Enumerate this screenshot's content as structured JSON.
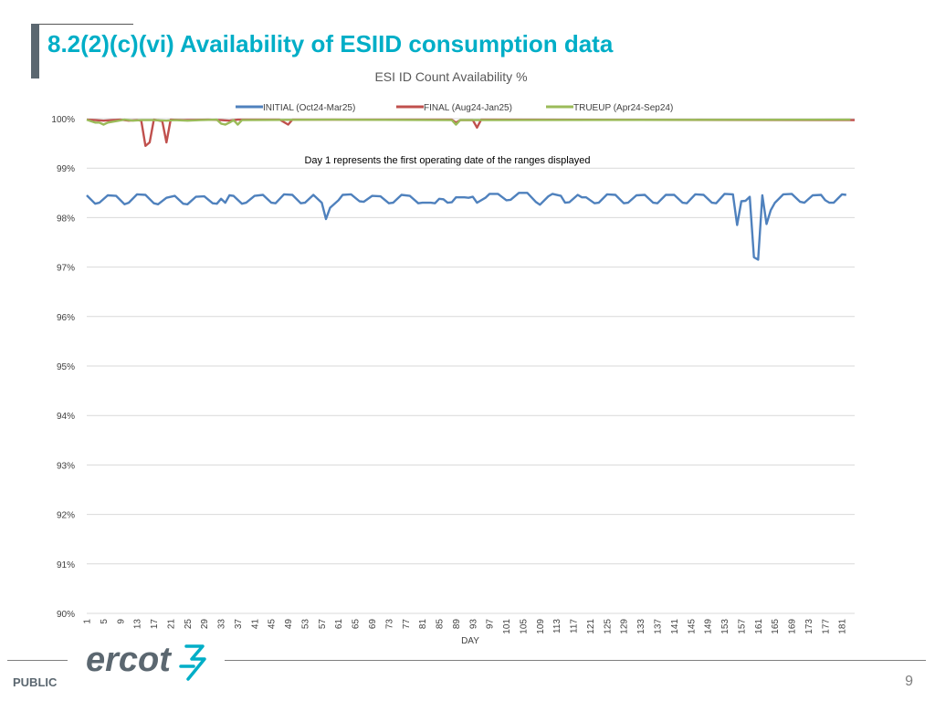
{
  "slide": {
    "title": "8.2(2)(c)(vi) Availability of ESIID consumption data",
    "footer_label": "PUBLIC",
    "page_number": "9",
    "logo_text": "ercot"
  },
  "colors": {
    "title": "#00aec7",
    "initial": "#4f81bd",
    "final": "#c0504d",
    "trueup": "#9bbb59",
    "grid": "#d9d9d9",
    "text": "#404040"
  },
  "chart_data": {
    "type": "line",
    "title": "ESI ID Count Availability %",
    "annotation": "Day 1 represents the first operating date of the ranges displayed",
    "xlabel": "DAY",
    "ylabel": "",
    "ylim": [
      90,
      100
    ],
    "xlim": [
      1,
      184
    ],
    "y_ticks": [
      "90%",
      "91%",
      "92%",
      "93%",
      "94%",
      "95%",
      "96%",
      "97%",
      "98%",
      "99%",
      "100%"
    ],
    "x_ticks": [
      "1",
      "5",
      "9",
      "13",
      "17",
      "21",
      "25",
      "29",
      "33",
      "37",
      "41",
      "45",
      "49",
      "53",
      "57",
      "61",
      "65",
      "69",
      "73",
      "77",
      "81",
      "85",
      "89",
      "93",
      "97",
      "101",
      "105",
      "109",
      "113",
      "117",
      "121",
      "125",
      "129",
      "133",
      "137",
      "141",
      "145",
      "149",
      "153",
      "157",
      "161",
      "165",
      "169",
      "173",
      "177",
      "181"
    ],
    "legend_position": "top",
    "grid": true,
    "series": [
      {
        "name": "INITIAL (Oct24-Mar25)",
        "color": "#4f81bd",
        "points": [
          [
            1,
            98.45
          ],
          [
            3,
            98.28
          ],
          [
            4,
            98.3
          ],
          [
            6,
            98.45
          ],
          [
            8,
            98.44
          ],
          [
            10,
            98.27
          ],
          [
            11,
            98.3
          ],
          [
            13,
            98.47
          ],
          [
            15,
            98.46
          ],
          [
            17,
            98.29
          ],
          [
            18,
            98.27
          ],
          [
            20,
            98.4
          ],
          [
            22,
            98.44
          ],
          [
            24,
            98.28
          ],
          [
            25,
            98.27
          ],
          [
            27,
            98.42
          ],
          [
            29,
            98.43
          ],
          [
            31,
            98.29
          ],
          [
            32,
            98.28
          ],
          [
            33,
            98.38
          ],
          [
            34,
            98.3
          ],
          [
            35,
            98.45
          ],
          [
            36,
            98.44
          ],
          [
            38,
            98.28
          ],
          [
            39,
            98.3
          ],
          [
            41,
            98.44
          ],
          [
            43,
            98.46
          ],
          [
            45,
            98.3
          ],
          [
            46,
            98.29
          ],
          [
            48,
            98.47
          ],
          [
            50,
            98.46
          ],
          [
            52,
            98.29
          ],
          [
            53,
            98.3
          ],
          [
            55,
            98.46
          ],
          [
            57,
            98.3
          ],
          [
            58,
            97.97
          ],
          [
            59,
            98.2
          ],
          [
            61,
            98.35
          ],
          [
            62,
            98.46
          ],
          [
            64,
            98.47
          ],
          [
            66,
            98.33
          ],
          [
            67,
            98.32
          ],
          [
            69,
            98.44
          ],
          [
            71,
            98.43
          ],
          [
            73,
            98.29
          ],
          [
            74,
            98.3
          ],
          [
            76,
            98.46
          ],
          [
            78,
            98.44
          ],
          [
            80,
            98.29
          ],
          [
            81,
            98.3
          ],
          [
            83,
            98.3
          ],
          [
            84,
            98.29
          ],
          [
            85,
            98.38
          ],
          [
            86,
            98.37
          ],
          [
            87,
            98.3
          ],
          [
            88,
            98.31
          ],
          [
            89,
            98.41
          ],
          [
            91,
            98.41
          ],
          [
            92,
            98.4
          ],
          [
            93,
            98.42
          ],
          [
            94,
            98.3
          ],
          [
            96,
            98.4
          ],
          [
            97,
            98.48
          ],
          [
            99,
            98.48
          ],
          [
            101,
            98.35
          ],
          [
            102,
            98.36
          ],
          [
            104,
            98.5
          ],
          [
            106,
            98.5
          ],
          [
            108,
            98.32
          ],
          [
            109,
            98.26
          ],
          [
            111,
            98.43
          ],
          [
            112,
            98.48
          ],
          [
            114,
            98.44
          ],
          [
            115,
            98.3
          ],
          [
            116,
            98.31
          ],
          [
            118,
            98.46
          ],
          [
            119,
            98.41
          ],
          [
            120,
            98.41
          ],
          [
            122,
            98.29
          ],
          [
            123,
            98.3
          ],
          [
            125,
            98.47
          ],
          [
            127,
            98.46
          ],
          [
            129,
            98.29
          ],
          [
            130,
            98.3
          ],
          [
            132,
            98.45
          ],
          [
            134,
            98.46
          ],
          [
            136,
            98.3
          ],
          [
            137,
            98.29
          ],
          [
            139,
            98.46
          ],
          [
            141,
            98.46
          ],
          [
            143,
            98.3
          ],
          [
            144,
            98.29
          ],
          [
            146,
            98.47
          ],
          [
            148,
            98.46
          ],
          [
            150,
            98.3
          ],
          [
            151,
            98.29
          ],
          [
            153,
            98.48
          ],
          [
            155,
            98.47
          ],
          [
            156,
            97.85
          ],
          [
            157,
            98.33
          ],
          [
            158,
            98.34
          ],
          [
            159,
            98.42
          ],
          [
            160,
            97.2
          ],
          [
            161,
            97.15
          ],
          [
            162,
            98.45
          ],
          [
            163,
            97.87
          ],
          [
            164,
            98.15
          ],
          [
            165,
            98.3
          ],
          [
            167,
            98.47
          ],
          [
            169,
            98.48
          ],
          [
            171,
            98.32
          ],
          [
            172,
            98.3
          ],
          [
            174,
            98.45
          ],
          [
            176,
            98.46
          ],
          [
            177,
            98.35
          ],
          [
            178,
            98.3
          ],
          [
            179,
            98.3
          ],
          [
            181,
            98.47
          ],
          [
            182,
            98.46
          ]
        ]
      },
      {
        "name": "FINAL (Aug24-Jan25)",
        "color": "#c0504d",
        "points": [
          [
            1,
            99.98
          ],
          [
            3,
            99.97
          ],
          [
            5,
            99.96
          ],
          [
            7,
            99.97
          ],
          [
            9,
            99.98
          ],
          [
            11,
            99.96
          ],
          [
            13,
            99.97
          ],
          [
            14,
            99.96
          ],
          [
            15,
            99.45
          ],
          [
            16,
            99.52
          ],
          [
            17,
            99.98
          ],
          [
            19,
            99.95
          ],
          [
            20,
            99.52
          ],
          [
            21,
            99.98
          ],
          [
            24,
            99.97
          ],
          [
            30,
            99.98
          ],
          [
            33,
            99.97
          ],
          [
            35,
            99.96
          ],
          [
            37,
            99.98
          ],
          [
            47,
            99.98
          ],
          [
            49,
            99.88
          ],
          [
            50,
            99.98
          ],
          [
            88,
            99.98
          ],
          [
            89,
            99.92
          ],
          [
            90,
            99.97
          ],
          [
            93,
            99.97
          ],
          [
            94,
            99.82
          ],
          [
            95,
            99.98
          ],
          [
            184,
            99.97
          ]
        ]
      },
      {
        "name": "TRUEUP (Apr24-Sep24)",
        "color": "#9bbb59",
        "points": [
          [
            1,
            99.98
          ],
          [
            2,
            99.95
          ],
          [
            3,
            99.92
          ],
          [
            4,
            99.92
          ],
          [
            5,
            99.88
          ],
          [
            6,
            99.92
          ],
          [
            8,
            99.95
          ],
          [
            10,
            99.98
          ],
          [
            12,
            99.96
          ],
          [
            14,
            99.97
          ],
          [
            17,
            99.97
          ],
          [
            20,
            99.96
          ],
          [
            22,
            99.97
          ],
          [
            25,
            99.96
          ],
          [
            28,
            99.97
          ],
          [
            32,
            99.98
          ],
          [
            33,
            99.9
          ],
          [
            34,
            99.88
          ],
          [
            35,
            99.92
          ],
          [
            36,
            99.97
          ],
          [
            37,
            99.88
          ],
          [
            38,
            99.97
          ],
          [
            60,
            99.98
          ],
          [
            88,
            99.97
          ],
          [
            89,
            99.88
          ],
          [
            90,
            99.97
          ],
          [
            183,
            99.98
          ]
        ]
      }
    ]
  }
}
